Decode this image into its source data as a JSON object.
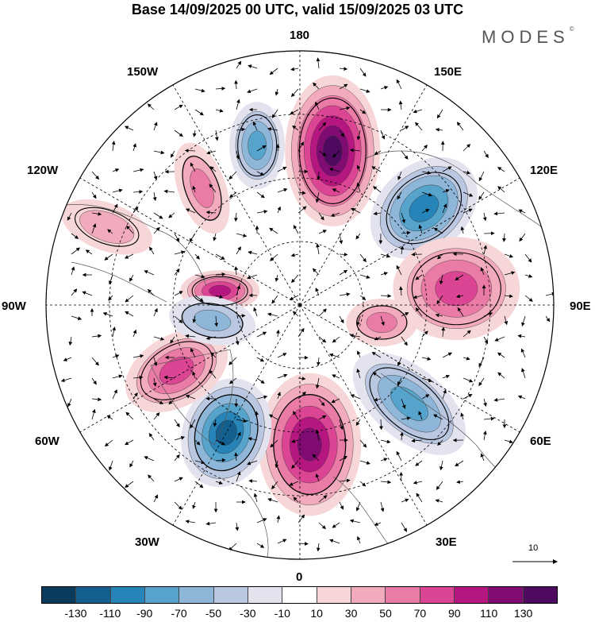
{
  "header": {
    "title": "Base 14/09/2025 00 UTC, valid 15/09/2025 03 UTC",
    "brand": "MODES",
    "brand_mark": "©"
  },
  "map": {
    "projection": "north polar stereographic",
    "longitude_labels": {
      "top": "180",
      "top_right": "150E",
      "right_upper": "120E",
      "right": "90E",
      "right_lower": "60E",
      "bottom_right": "30E",
      "bottom": "0",
      "bottom_left": "30W",
      "left_lower": "60W",
      "left": "90W",
      "left_upper": "120W",
      "top_left": "150W"
    },
    "reference_vector_value": "10",
    "anomaly_centers": [
      {
        "sign": "positive",
        "intensity": 120,
        "near": "East Siberian Sea / 170E"
      },
      {
        "sign": "negative",
        "intensity": -90,
        "near": "Central Siberia / 125E"
      },
      {
        "sign": "positive",
        "intensity": 70,
        "near": "Siberia / 95E"
      },
      {
        "sign": "positive",
        "intensity": 40,
        "near": "Kara region / 80E"
      },
      {
        "sign": "negative",
        "intensity": -70,
        "near": "Western Siberia / 50E"
      },
      {
        "sign": "positive",
        "intensity": 110,
        "near": "Scandinavia / 10E"
      },
      {
        "sign": "negative",
        "intensity": -100,
        "near": "North Atlantic / 30W"
      },
      {
        "sign": "positive",
        "intensity": 70,
        "near": "Labrador Sea / 60W"
      },
      {
        "sign": "positive",
        "intensity": 90,
        "near": "Canadian Arctic / 100W"
      },
      {
        "sign": "negative",
        "intensity": -40,
        "near": "Hudson Bay / 90W"
      },
      {
        "sign": "positive",
        "intensity": 40,
        "near": "NE Pacific / 135W"
      },
      {
        "sign": "negative",
        "intensity": -70,
        "near": "Bering Sea / 165W"
      },
      {
        "sign": "positive",
        "intensity": 20,
        "near": "Western N America / 120W"
      }
    ]
  },
  "colorbar": {
    "ticks": [
      "-130",
      "-110",
      "-90",
      "-70",
      "-50",
      "-30",
      "-10",
      "10",
      "30",
      "50",
      "70",
      "90",
      "110",
      "130"
    ],
    "colors": [
      "#0a3a5c",
      "#135f8f",
      "#2684b8",
      "#56a3cb",
      "#8eb6d8",
      "#bac7e1",
      "#e3e2ef",
      "#ffffff",
      "#f7d6d8",
      "#f2abbc",
      "#ea7aa6",
      "#db4593",
      "#b5167f",
      "#7f0b73",
      "#4d0a5e"
    ]
  }
}
